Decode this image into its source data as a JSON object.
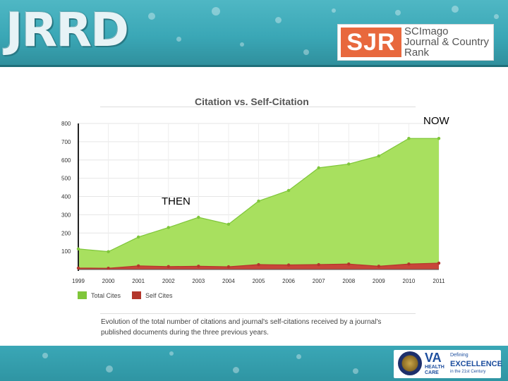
{
  "header": {
    "logo_text": "JRRD",
    "sjr_mark": "SJR",
    "sjr_line1": "SCImago",
    "sjr_line2": "Journal & Country",
    "sjr_line3": "Rank"
  },
  "annotations": {
    "now": "NOW",
    "then": "THEN"
  },
  "chart_data": {
    "type": "area",
    "title": "Citation vs. Self-Citation",
    "xlabel": "",
    "ylabel": "",
    "ylim": [
      0,
      800
    ],
    "yticks": [
      100,
      200,
      300,
      400,
      500,
      600,
      700,
      800
    ],
    "x": [
      "1999",
      "2000",
      "2001",
      "2002",
      "2003",
      "2004",
      "2005",
      "2006",
      "2007",
      "2008",
      "2009",
      "2010",
      "2011"
    ],
    "series": [
      {
        "name": "Total Cites",
        "color": "#a8e05f",
        "line_color": "#7fc63a",
        "values": [
          113,
          98,
          178,
          230,
          286,
          248,
          375,
          433,
          557,
          578,
          622,
          718,
          718
        ]
      },
      {
        "name": "Self Cites",
        "color": "#c8463a",
        "line_color": "#b3362b",
        "values": [
          8,
          7,
          20,
          16,
          18,
          15,
          27,
          25,
          27,
          30,
          18,
          30,
          35
        ]
      }
    ],
    "legend_position": "bottom-left",
    "caption": "Evolution of the total number of citations and journal's self-citations received by a journal's published documents during the three previous years."
  },
  "footer": {
    "va_mark": "VA",
    "va_health_line1": "HEALTH",
    "va_health_line2": "CARE",
    "tagline_1": "Defining",
    "tagline_2": "EXCELLENCE",
    "tagline_3": "in the 21st Century"
  }
}
